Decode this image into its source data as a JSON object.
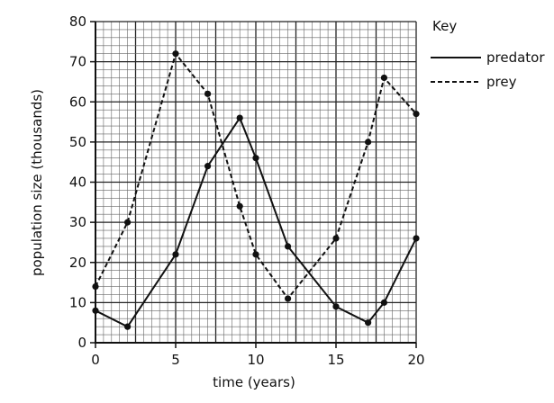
{
  "chart_data": {
    "type": "line",
    "xlabel": "time (years)",
    "ylabel": "population size (thousands)",
    "xlim": [
      0,
      20
    ],
    "ylim": [
      0,
      80
    ],
    "xticks": [
      0,
      5,
      10,
      15,
      20
    ],
    "yticks": [
      0,
      10,
      20,
      30,
      40,
      50,
      60,
      70,
      80
    ],
    "grid": true,
    "legend_title": "Key",
    "legend_position": "right",
    "series": [
      {
        "name": "predator",
        "style": "solid",
        "x": [
          0,
          2,
          5,
          7,
          9,
          10,
          12,
          15,
          17,
          18,
          20
        ],
        "y": [
          8,
          4,
          22,
          44,
          56,
          46,
          24,
          9,
          5,
          10,
          26
        ]
      },
      {
        "name": "prey",
        "style": "dashed",
        "x": [
          0,
          2,
          5,
          7,
          9,
          10,
          12,
          15,
          17,
          18,
          20
        ],
        "y": [
          14,
          30,
          72,
          62,
          34,
          22,
          11,
          26,
          50,
          66,
          57
        ]
      }
    ]
  }
}
